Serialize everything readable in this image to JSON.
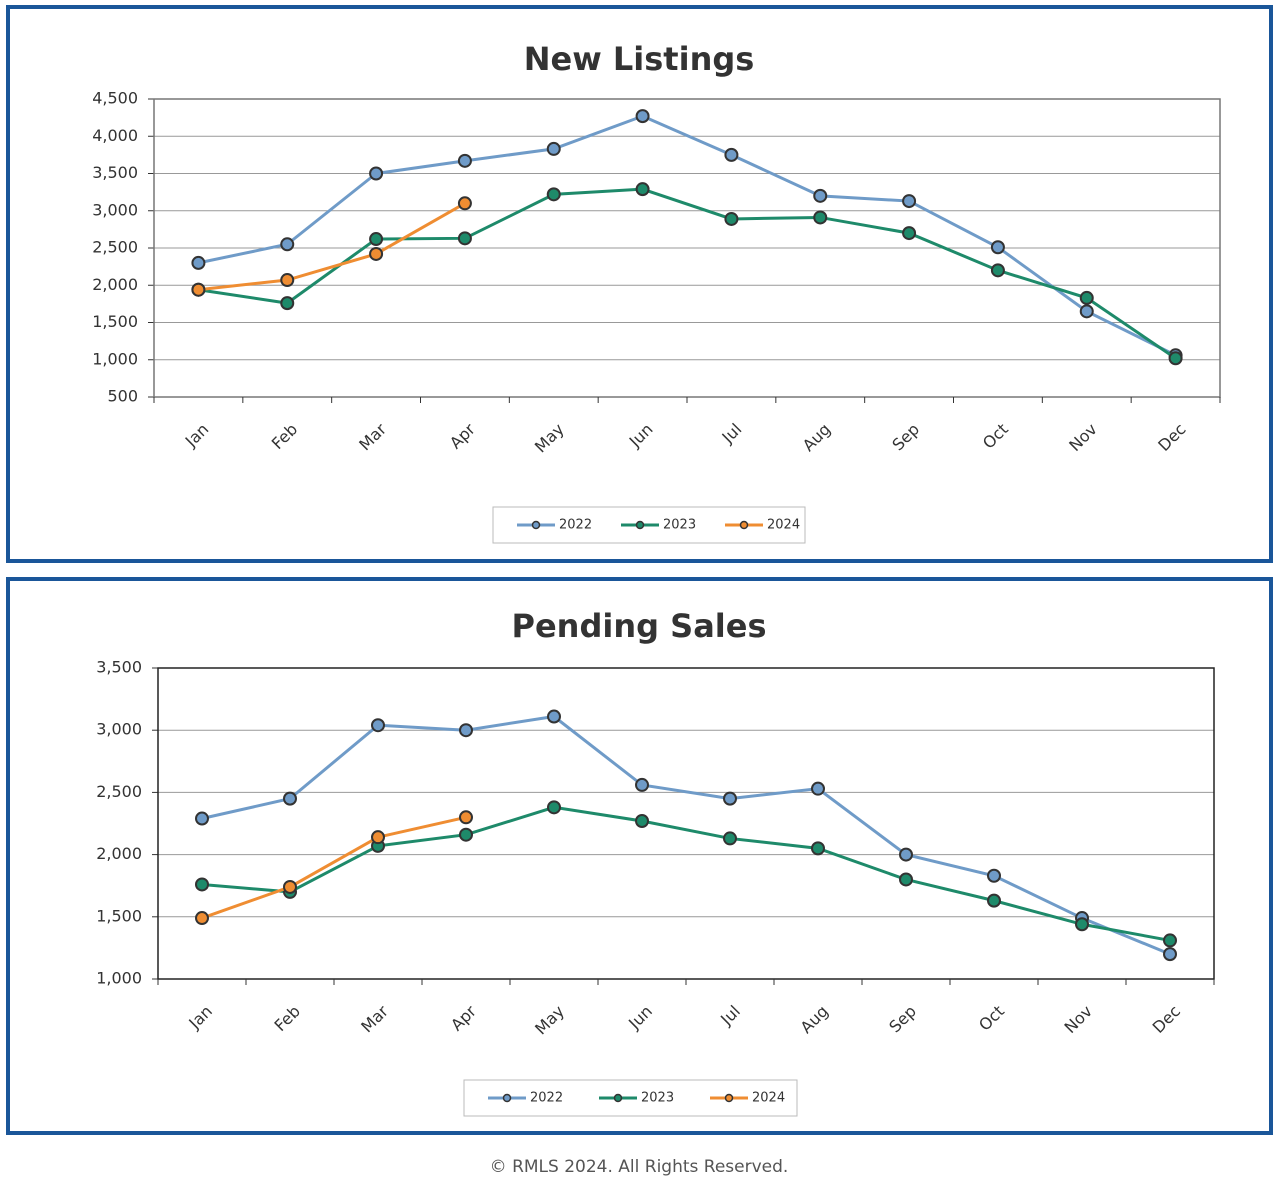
{
  "chart_data": [
    {
      "type": "line",
      "title": "New Listings",
      "categories": [
        "Jan",
        "Feb",
        "Mar",
        "Apr",
        "May",
        "Jun",
        "Jul",
        "Aug",
        "Sep",
        "Oct",
        "Nov",
        "Dec"
      ],
      "series": [
        {
          "name": "2022",
          "color": "#6f9bc8",
          "values": [
            2300,
            2550,
            3500,
            3670,
            3830,
            4270,
            3750,
            3200,
            3130,
            2510,
            1650,
            1060
          ]
        },
        {
          "name": "2023",
          "color": "#1e8a6a",
          "values": [
            1940,
            1760,
            2620,
            2630,
            3220,
            3290,
            2890,
            2910,
            2700,
            2200,
            1830,
            1020
          ]
        },
        {
          "name": "2024",
          "color": "#ef8d32",
          "values": [
            1940,
            2070,
            2420,
            3100,
            null,
            null,
            null,
            null,
            null,
            null,
            null,
            null
          ]
        }
      ],
      "ylim": [
        500,
        4500
      ],
      "yticks": [
        500,
        {
          "value": 1000,
          "label": "1,000"
        },
        {
          "value": 1500,
          "label": "1,500"
        },
        {
          "value": 2000,
          "label": "2,000"
        },
        {
          "value": 2500,
          "label": "2,500"
        },
        {
          "value": 3000,
          "label": "3,000"
        },
        {
          "value": 3500,
          "label": "3,500"
        },
        {
          "value": 4000,
          "label": "4,000"
        },
        {
          "value": 4500,
          "label": "4,500"
        }
      ],
      "grid": true,
      "legend": "bottom"
    },
    {
      "type": "line",
      "title": "Pending Sales",
      "categories": [
        "Jan",
        "Feb",
        "Mar",
        "Apr",
        "May",
        "Jun",
        "Jul",
        "Aug",
        "Sep",
        "Oct",
        "Nov",
        "Dec"
      ],
      "series": [
        {
          "name": "2022",
          "color": "#6f9bc8",
          "values": [
            2290,
            2450,
            3040,
            3000,
            3110,
            2560,
            2450,
            2530,
            2000,
            1830,
            1490,
            1200
          ]
        },
        {
          "name": "2023",
          "color": "#1e8a6a",
          "values": [
            1760,
            1700,
            2070,
            2160,
            2380,
            2270,
            2130,
            2050,
            1800,
            1630,
            1440,
            1310
          ]
        },
        {
          "name": "2024",
          "color": "#ef8d32",
          "values": [
            1490,
            1740,
            2140,
            2300,
            null,
            null,
            null,
            null,
            null,
            null,
            null,
            null
          ]
        }
      ],
      "ylim": [
        1000,
        3500
      ],
      "yticks": [
        {
          "value": 1000,
          "label": "1,000"
        },
        {
          "value": 1500,
          "label": "1,500"
        },
        {
          "value": 2000,
          "label": "2,000"
        },
        {
          "value": 2500,
          "label": "2,500"
        },
        {
          "value": 3000,
          "label": "3,000"
        },
        {
          "value": 3500,
          "label": "3,500"
        }
      ],
      "grid": true,
      "legend": "bottom"
    }
  ],
  "footer": "© RMLS 2024. All Rights Reserved."
}
